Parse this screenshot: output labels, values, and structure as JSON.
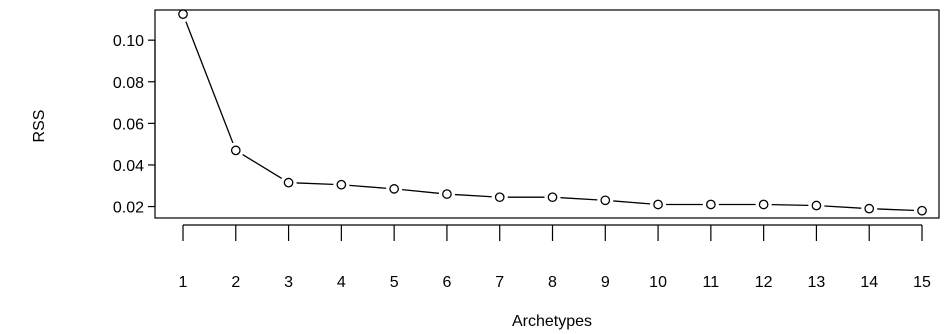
{
  "chart_data": {
    "type": "line",
    "title": "",
    "xlabel": "Archetypes",
    "ylabel": "RSS",
    "x": [
      1,
      2,
      3,
      4,
      5,
      6,
      7,
      8,
      9,
      10,
      11,
      12,
      13,
      14,
      15
    ],
    "x_tick_labels": [
      "1",
      "2",
      "3",
      "4",
      "5",
      "6",
      "7",
      "8",
      "9",
      "10",
      "11",
      "12",
      "13",
      "14",
      "15"
    ],
    "y_ticks": [
      0.02,
      0.04,
      0.06,
      0.08,
      0.1
    ],
    "y_tick_labels": [
      "0.02",
      "0.04",
      "0.06",
      "0.08",
      "0.10"
    ],
    "series": [
      {
        "values": [
          0.1125,
          0.047,
          0.0315,
          0.0305,
          0.0285,
          0.026,
          0.0245,
          0.0245,
          0.023,
          0.021,
          0.021,
          0.021,
          0.0205,
          0.019,
          0.018
        ]
      }
    ],
    "xlim": [
      1,
      15
    ],
    "ylim": [
      0.0145,
      0.1145
    ],
    "line_style": "both",
    "marker": "open-circle",
    "grid": false,
    "legend": "none"
  }
}
